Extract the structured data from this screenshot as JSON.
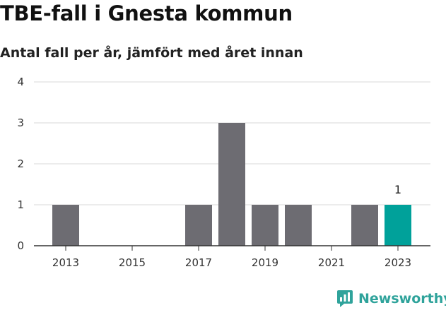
{
  "chart_data": {
    "type": "bar",
    "title": "TBE-fall i Gnesta kommun",
    "subtitle": "Antal fall per år, jämfört med året innan",
    "categories": [
      "2013",
      "2014",
      "2015",
      "2016",
      "2017",
      "2018",
      "2019",
      "2020",
      "2021",
      "2022",
      "2023"
    ],
    "values": [
      1,
      0,
      0,
      0,
      1,
      3,
      1,
      1,
      0,
      1,
      1
    ],
    "highlight_index": 10,
    "data_labels": [
      {
        "index": 10,
        "text": "1"
      }
    ],
    "x_tick_labels": [
      "2013",
      "2015",
      "2017",
      "2019",
      "2021",
      "2023"
    ],
    "y_ticks": [
      0,
      1,
      2,
      3,
      4
    ],
    "ylim": [
      0,
      4
    ],
    "grid": true,
    "colors": {
      "bar": "#6d6c72",
      "highlight": "#00a19a",
      "grid": "#d9d9d9",
      "axis": "#333333"
    }
  },
  "brand": {
    "name": "Newsworthy",
    "icon": "newsworthy-logo-icon",
    "color": "#2fa39b"
  }
}
